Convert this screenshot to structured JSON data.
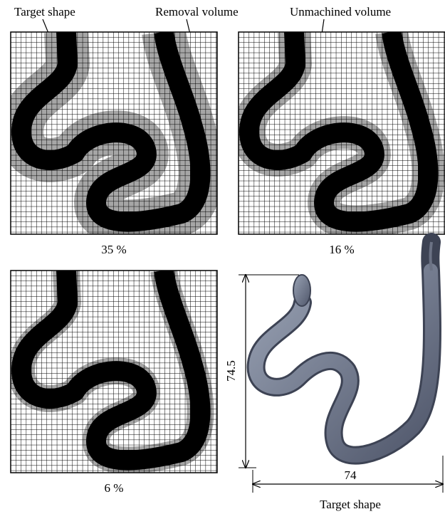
{
  "labels": {
    "target": "Target shape",
    "removal": "Removal volume",
    "unmachined": "Unmachined volume"
  },
  "panels": [
    {
      "caption": "35 %"
    },
    {
      "caption": "16 %"
    },
    {
      "caption": "6 %"
    }
  ],
  "render": {
    "height": "74.5",
    "width": "74",
    "caption": "Target shape"
  }
}
